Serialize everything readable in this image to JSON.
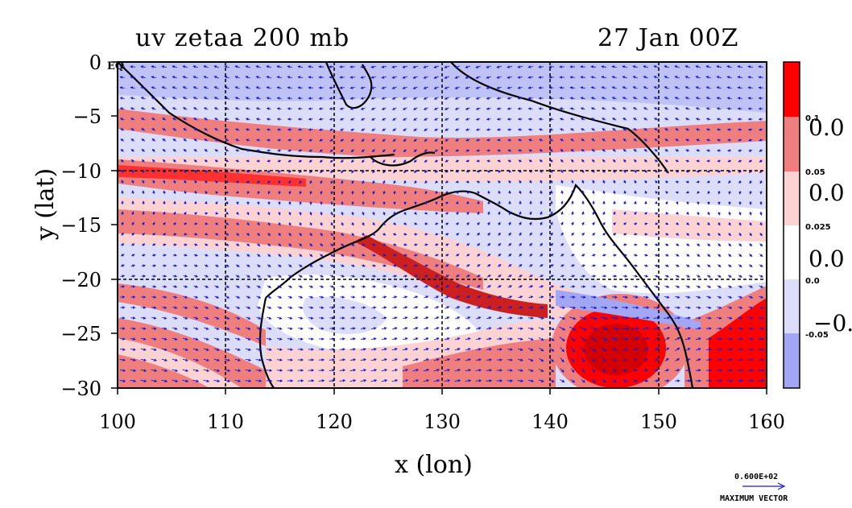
{
  "title_left": "uv zetaa 200 mb",
  "title_right": "27 Jan 00Z",
  "chart_data": {
    "type": "heatmap",
    "title": "uv zetaa 200 mb",
    "subtitle": "27 Jan 00Z",
    "xlabel": "x (lon)",
    "ylabel": "y (lat)",
    "xlim": [
      100,
      160
    ],
    "ylim": [
      -30,
      0
    ],
    "x_ticks": [
      100,
      110,
      120,
      130,
      140,
      150,
      160
    ],
    "y_ticks": [
      0,
      -5,
      -10,
      -15,
      -20,
      -25,
      -30
    ],
    "x_tick_labels": [
      "100",
      "110",
      "120",
      "130",
      "140",
      "150",
      "160"
    ],
    "y_tick_labels": [
      "0",
      "−5",
      "−10",
      "−15",
      "−20",
      "−25",
      "−30"
    ],
    "grid_lon": [
      110,
      120,
      130,
      140,
      150
    ],
    "grid_lat": [
      -10,
      -20
    ],
    "corner_label": "EQ",
    "colorbar": {
      "levels": [
        0.1,
        0.05,
        0.025,
        0.0,
        -0.05
      ],
      "level_labels": [
        "0.1",
        "0.05",
        "0.025",
        "0.0",
        "-0.05"
      ],
      "big_labels": [
        "0.0",
        "0.0",
        "0.0",
        "−0."
      ],
      "colors": [
        "#ff0000",
        "#ef7f7f",
        "#fcd2d2",
        "#ffffff",
        "#dcdcfb",
        "#a3a6f4"
      ]
    },
    "max_vector": {
      "value": "0.600E+02",
      "label": "MAXIMUM VECTOR"
    }
  }
}
